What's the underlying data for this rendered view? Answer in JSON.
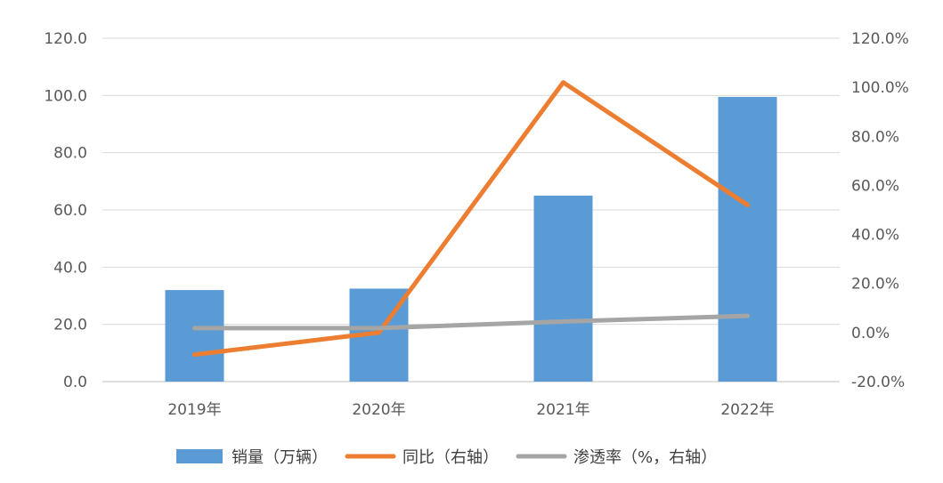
{
  "chart_data": {
    "type": "bar",
    "title": "",
    "categories": [
      "2019年",
      "2020年",
      "2021年",
      "2022年"
    ],
    "ylim": [
      0,
      120
    ],
    "y_ticks": [
      "0.0",
      "20.0",
      "40.0",
      "60.0",
      "80.0",
      "100.0",
      "120.0"
    ],
    "y2lim": [
      -20,
      120
    ],
    "y2_ticks": [
      "-20.0%",
      "0.0%",
      "20.0%",
      "40.0%",
      "60.0%",
      "80.0%",
      "100.0%",
      "120.0%"
    ],
    "grid": true,
    "legend_position": "bottom",
    "series": [
      {
        "name": "销量（万辆）",
        "type": "bar",
        "axis": "left",
        "color": "#5B9BD5",
        "values": [
          32.0,
          32.5,
          65.0,
          99.5
        ]
      },
      {
        "name": "同比（右轴）",
        "type": "line",
        "axis": "right",
        "color": "#ED7D31",
        "values": [
          -9.0,
          0.0,
          102.0,
          52.0
        ]
      },
      {
        "name": "渗透率（%，右轴）",
        "type": "line",
        "axis": "right",
        "color": "#A5A5A5",
        "values": [
          1.8,
          1.8,
          4.5,
          6.8
        ]
      }
    ]
  }
}
